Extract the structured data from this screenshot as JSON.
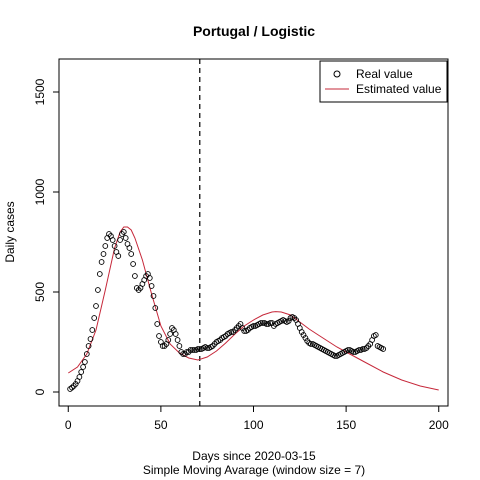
{
  "chart_data": {
    "type": "scatter",
    "title": "Portugal / Logistic",
    "xlabel": "Days since 2020-03-15",
    "xlabel2": "Simple Moving Avarage (window size = 7)",
    "ylabel": "Daily cases",
    "xlim": [
      -5,
      205
    ],
    "ylim": [
      -70,
      1665
    ],
    "xticks": [
      0,
      50,
      100,
      150,
      200
    ],
    "yticks": [
      0,
      500,
      1000,
      1500
    ],
    "vline_x": 71,
    "legend": {
      "position": "top-right",
      "entries": [
        "Real value",
        "Estimated value"
      ]
    },
    "colors": {
      "real": "#000000",
      "estimated": "#c6283a",
      "vline": "#000000"
    },
    "series": [
      {
        "name": "Real value",
        "kind": "points",
        "x": [
          1,
          2,
          3,
          4,
          5,
          6,
          7,
          8,
          9,
          10,
          11,
          12,
          13,
          14,
          15,
          16,
          17,
          18,
          19,
          20,
          21,
          22,
          23,
          24,
          25,
          26,
          27,
          28,
          29,
          30,
          31,
          32,
          33,
          34,
          35,
          36,
          37,
          38,
          39,
          40,
          41,
          42,
          43,
          44,
          45,
          46,
          47,
          48,
          49,
          50,
          51,
          52,
          53,
          54,
          55,
          56,
          57,
          58,
          59,
          60,
          61,
          62,
          63,
          64,
          65,
          66,
          67,
          68,
          69,
          70,
          71,
          72,
          73,
          74,
          75,
          76,
          77,
          78,
          79,
          80,
          81,
          82,
          83,
          84,
          85,
          86,
          87,
          88,
          89,
          90,
          91,
          92,
          93,
          94,
          95,
          96,
          97,
          98,
          99,
          100,
          101,
          102,
          103,
          104,
          105,
          106,
          107,
          108,
          109,
          110,
          111,
          112,
          113,
          114,
          115,
          116,
          117,
          118,
          119,
          120,
          121,
          122,
          123,
          124,
          125,
          126,
          127,
          128,
          129,
          130,
          131,
          132,
          133,
          134,
          135,
          136,
          137,
          138,
          139,
          140,
          141,
          142,
          143,
          144,
          145,
          146,
          147,
          148,
          149,
          150,
          151,
          152,
          153,
          154,
          155,
          156,
          157,
          158,
          159,
          160,
          161,
          162,
          163,
          164,
          165,
          166,
          167,
          168,
          169,
          170
        ],
        "y": [
          15,
          22,
          30,
          40,
          55,
          75,
          100,
          125,
          150,
          190,
          230,
          265,
          310,
          370,
          430,
          510,
          590,
          650,
          690,
          730,
          770,
          790,
          780,
          760,
          730,
          700,
          680,
          760,
          790,
          800,
          770,
          740,
          720,
          690,
          640,
          580,
          520,
          510,
          520,
          540,
          560,
          580,
          590,
          570,
          530,
          480,
          420,
          340,
          280,
          250,
          230,
          230,
          240,
          260,
          290,
          320,
          310,
          290,
          260,
          230,
          200,
          190,
          190,
          200,
          200,
          210,
          210,
          210,
          210,
          215,
          215,
          215,
          220,
          225,
          220,
          220,
          225,
          230,
          240,
          250,
          255,
          260,
          270,
          275,
          280,
          290,
          295,
          300,
          300,
          310,
          320,
          330,
          340,
          320,
          305,
          305,
          310,
          320,
          325,
          330,
          330,
          335,
          340,
          345,
          345,
          345,
          340,
          340,
          345,
          345,
          330,
          340,
          345,
          350,
          355,
          360,
          355,
          350,
          355,
          370,
          375,
          370,
          360,
          340,
          320,
          300,
          285,
          270,
          255,
          245,
          240,
          240,
          235,
          230,
          225,
          220,
          215,
          210,
          205,
          200,
          195,
          190,
          185,
          180,
          180,
          185,
          190,
          195,
          200,
          205,
          210,
          210,
          205,
          200,
          200,
          205,
          210,
          210,
          215,
          215,
          220,
          230,
          240,
          260,
          280,
          285,
          230,
          225,
          220,
          215
        ],
        "marker": "open-circle"
      },
      {
        "name": "Estimated value",
        "kind": "line",
        "x": [
          0,
          5,
          10,
          15,
          20,
          25,
          28,
          30,
          32,
          34,
          36,
          40,
          45,
          50,
          55,
          60,
          65,
          70,
          75,
          80,
          85,
          90,
          95,
          100,
          105,
          110,
          112,
          115,
          120,
          125,
          130,
          135,
          140,
          145,
          150,
          160,
          170,
          180,
          190,
          200
        ],
        "y": [
          95,
          125,
          190,
          310,
          510,
          720,
          800,
          825,
          825,
          810,
          770,
          660,
          490,
          330,
          240,
          195,
          170,
          160,
          175,
          205,
          245,
          290,
          330,
          360,
          385,
          400,
          402,
          400,
          385,
          350,
          315,
          285,
          255,
          225,
          200,
          150,
          100,
          60,
          30,
          10
        ]
      }
    ]
  }
}
